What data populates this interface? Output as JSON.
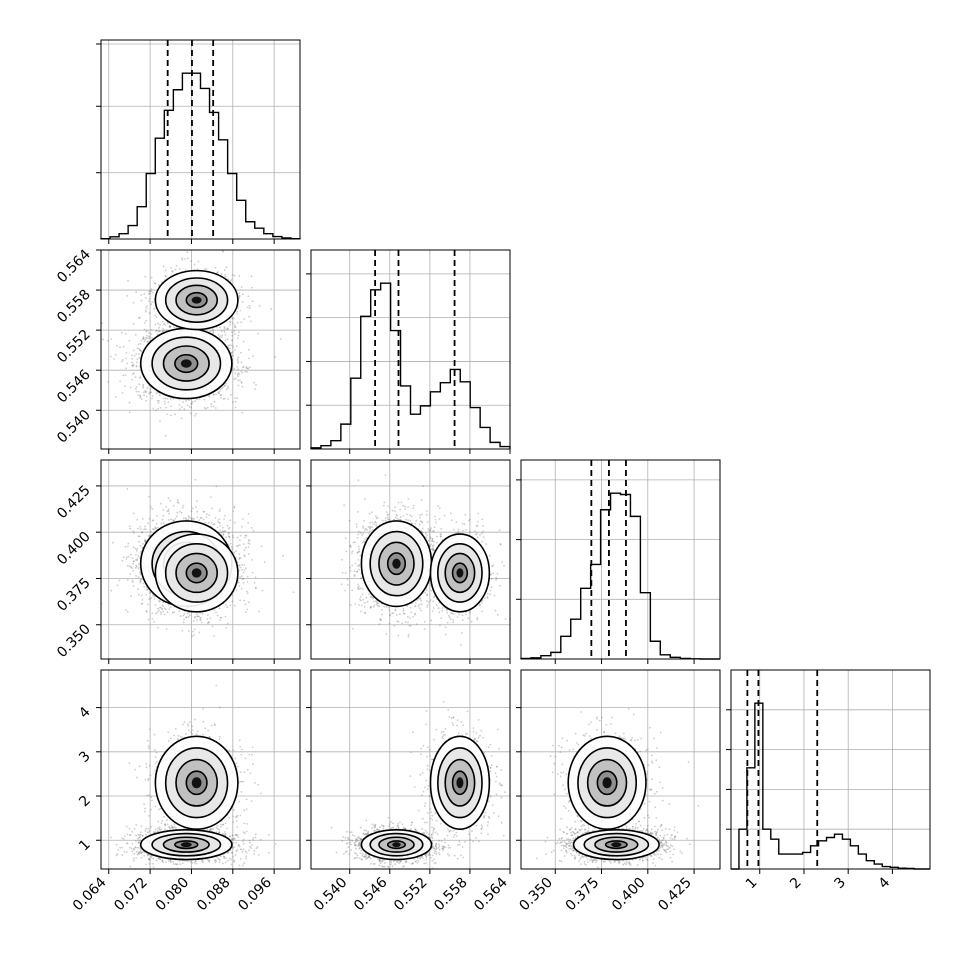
{
  "chart_data": {
    "type": "corner",
    "params": [
      {
        "key": "p0",
        "ticks": [
          0.064,
          0.072,
          0.08,
          0.088,
          0.096
        ],
        "tick_labels": [
          "0.064",
          "0.072",
          "0.080",
          "0.088",
          "0.096"
        ],
        "range": [
          0.0625,
          0.101
        ]
      },
      {
        "key": "p1",
        "ticks": [
          0.54,
          0.546,
          0.552,
          0.558,
          0.564
        ],
        "tick_labels": [
          "0.540",
          "0.546",
          "0.552",
          "0.558",
          "0.564"
        ],
        "range": [
          0.5342,
          0.564
        ]
      },
      {
        "key": "p2",
        "ticks": [
          0.35,
          0.375,
          0.4,
          0.425
        ],
        "tick_labels": [
          "0.350",
          "0.375",
          "0.400",
          "0.425"
        ],
        "range": [
          0.3315,
          0.439
        ]
      },
      {
        "key": "p3",
        "ticks": [
          1,
          2,
          3,
          4
        ],
        "tick_labels": [
          "1",
          "2",
          "3",
          "4"
        ],
        "range": [
          0.35,
          4.85
        ]
      }
    ],
    "quantile_lines": [
      [
        0.0754,
        0.0801,
        0.0842
      ],
      [
        0.5438,
        0.5473,
        0.5557
      ],
      [
        0.3695,
        0.379,
        0.3882
      ],
      [
        0.72,
        0.97,
        2.3
      ]
    ],
    "histograms": [
      {
        "edges_range": [
          0.0625,
          0.101
        ],
        "counts": [
          0.2,
          1.3,
          3.2,
          8.1,
          19.5,
          39.5,
          60.8,
          77.6,
          90.0,
          100.0,
          100.0,
          90.8,
          76.3,
          59.8,
          39.5,
          23.3,
          10.4,
          6.5,
          3.2,
          1.5,
          0.6,
          0.2
        ]
      },
      {
        "edges_range": [
          0.5342,
          0.564
        ],
        "counts": [
          0.7,
          2.0,
          5.0,
          15.0,
          42.7,
          80.0,
          96.0,
          100.0,
          71.4,
          38.0,
          21.0,
          26.0,
          34.5,
          40.0,
          48.0,
          40.5,
          25.0,
          13.0,
          4.0,
          1.5
        ]
      },
      {
        "edges_range": [
          0.3315,
          0.439
        ],
        "counts": [
          0.3,
          0.7,
          2.0,
          4.0,
          13.7,
          24.0,
          42.6,
          57.0,
          90.0,
          100.0,
          99.2,
          86.0,
          40.0,
          10.7,
          2.5,
          1.0,
          0.3,
          0.1,
          0.0,
          0.0
        ]
      },
      {
        "edges_range": [
          0.35,
          4.85
        ],
        "counts": [
          0.0,
          24.0,
          61.0,
          100.0,
          24.0,
          18.0,
          9.0,
          9.0,
          9.0,
          10.0,
          14.0,
          17.0,
          19.0,
          21.0,
          18.0,
          14.0,
          9.0,
          5.0,
          3.0,
          1.5,
          1.0,
          0.5,
          0.3,
          0.0,
          0.0
        ]
      }
    ],
    "modes_2d": {
      "p0": [
        {
          "c": 0.079,
          "s": 0.0042,
          "w": 0.68
        },
        {
          "c": 0.081,
          "s": 0.0038,
          "w": 0.32
        }
      ],
      "p1": [
        {
          "c": 0.547,
          "s": 0.0025,
          "w": 0.68
        },
        {
          "c": 0.5565,
          "s": 0.0021,
          "w": 0.32
        }
      ],
      "p2": [
        {
          "c": 0.383,
          "s": 0.011,
          "w": 0.68
        },
        {
          "c": 0.378,
          "s": 0.01,
          "w": 0.32
        }
      ],
      "p3": [
        {
          "c": 0.9,
          "s": 0.16,
          "w": 0.6
        },
        {
          "c": 2.3,
          "s": 0.5,
          "w": 0.4
        }
      ]
    },
    "grid": true,
    "contour_levels": 4,
    "colors": {
      "points": "#6f6f6f",
      "contour_line": "#000000",
      "hist_line": "#000000"
    }
  }
}
